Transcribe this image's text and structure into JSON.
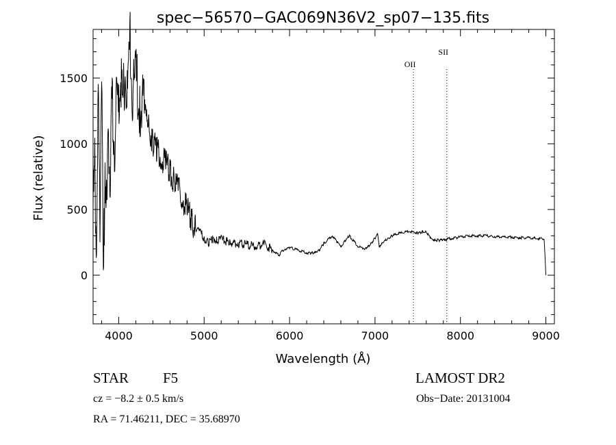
{
  "chart_data": {
    "type": "line",
    "title": "spec−56570−GAC069N36V2_sp07−135.fits",
    "xlabel": "Wavelength (Å)",
    "ylabel": "Flux (relative)",
    "xlim": [
      3700,
      9100
    ],
    "ylim": [
      -370,
      1870
    ],
    "xticks": [
      4000,
      5000,
      6000,
      7000,
      8000,
      9000
    ],
    "yticks": [
      0,
      500,
      1000,
      1500
    ],
    "grid": false,
    "line_color": "#000000",
    "series": [
      {
        "x": [
          3700,
          3720,
          3740,
          3760,
          3780,
          3800,
          3820,
          3840,
          3860,
          3880,
          3900,
          3920,
          3950,
          3980,
          4000,
          4020,
          4050,
          4080,
          4100,
          4130,
          4160,
          4200,
          4250,
          4300,
          4350,
          4400,
          4450,
          4500,
          4550,
          4600,
          4650,
          4700,
          4750,
          4800,
          4850,
          4900,
          4950,
          5000,
          5050,
          5100,
          5150,
          5200,
          5300,
          5400,
          5500,
          5600,
          5700,
          5800,
          5880,
          5900,
          5950,
          6000,
          6100,
          6200,
          6250,
          6300,
          6350,
          6400,
          6500,
          6560,
          6600,
          6650,
          6700,
          6800,
          6900,
          6950,
          7000,
          7030,
          7050,
          7100,
          7150,
          7200,
          7300,
          7400,
          7500,
          7550,
          7600,
          7650,
          7700,
          7750,
          7800,
          7900,
          8000,
          8100,
          8200,
          8300,
          8400,
          8500,
          8600,
          8700,
          8800,
          8900,
          8980,
          9000
        ],
        "y": [
          500,
          800,
          200,
          1400,
          300,
          1700,
          -150,
          900,
          400,
          1100,
          700,
          1300,
          1000,
          1400,
          1200,
          1550,
          1300,
          1600,
          1350,
          1800,
          1400,
          1500,
          1300,
          1250,
          1150,
          1000,
          950,
          900,
          850,
          800,
          720,
          650,
          580,
          500,
          420,
          360,
          330,
          280,
          240,
          280,
          270,
          270,
          250,
          240,
          230,
          220,
          240,
          190,
          150,
          180,
          200,
          210,
          190,
          170,
          165,
          180,
          190,
          240,
          300,
          250,
          220,
          260,
          300,
          220,
          200,
          240,
          280,
          310,
          220,
          250,
          280,
          300,
          320,
          335,
          320,
          330,
          330,
          280,
          270,
          265,
          270,
          280,
          290,
          300,
          300,
          300,
          295,
          290,
          290,
          285,
          285,
          280,
          280,
          0
        ]
      }
    ],
    "annotations": [
      {
        "label": "OII",
        "x": 7450
      },
      {
        "label": "SII",
        "x": 7840
      }
    ]
  },
  "footer": {
    "object_class": "STAR",
    "subclass": "F5",
    "survey": "LAMOST DR2",
    "cz": "cz = −8.2 ± 0.5 km/s",
    "obs_date": "Obs−Date: 20131004",
    "coords": "RA =  71.46211, DEC =  35.68970"
  }
}
